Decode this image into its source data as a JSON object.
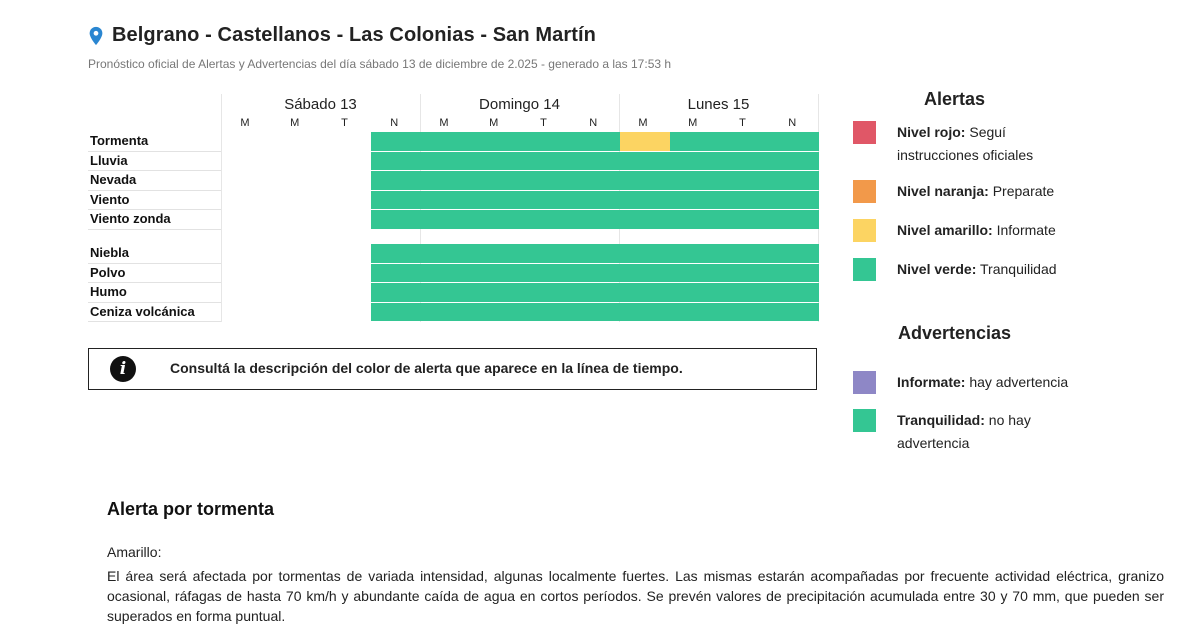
{
  "header": {
    "location": "Belgrano - Castellanos - Las Colonias - San Martín",
    "subtitle": "Pronóstico oficial de Alertas y Advertencias del día sábado 13 de diciembre de 2.025 - generado a las 17:53 h"
  },
  "timeline": {
    "days": [
      "Sábado 13",
      "Domingo 14",
      "Lunes 15"
    ],
    "slots": [
      "M",
      "M",
      "T",
      "N",
      "M",
      "M",
      "T",
      "N",
      "M",
      "M",
      "T",
      "N"
    ],
    "rows": [
      "Tormenta",
      "Lluvia",
      "Nevada",
      "Viento",
      "Viento zonda",
      "Niebla",
      "Polvo",
      "Humo",
      "Ceniza volcánica"
    ],
    "levels": [
      [
        "none",
        "none",
        "none",
        "verde",
        "verde",
        "verde",
        "verde",
        "verde",
        "amarillo",
        "verde",
        "verde",
        "verde"
      ],
      [
        "none",
        "none",
        "none",
        "verde",
        "verde",
        "verde",
        "verde",
        "verde",
        "verde",
        "verde",
        "verde",
        "verde"
      ],
      [
        "none",
        "none",
        "none",
        "verde",
        "verde",
        "verde",
        "verde",
        "verde",
        "verde",
        "verde",
        "verde",
        "verde"
      ],
      [
        "none",
        "none",
        "none",
        "verde",
        "verde",
        "verde",
        "verde",
        "verde",
        "verde",
        "verde",
        "verde",
        "verde"
      ],
      [
        "none",
        "none",
        "none",
        "verde",
        "verde",
        "verde",
        "verde",
        "verde",
        "verde",
        "verde",
        "verde",
        "verde"
      ],
      [
        "none",
        "none",
        "none",
        "verde",
        "verde",
        "verde",
        "verde",
        "verde",
        "verde",
        "verde",
        "verde",
        "verde"
      ],
      [
        "none",
        "none",
        "none",
        "verde",
        "verde",
        "verde",
        "verde",
        "verde",
        "verde",
        "verde",
        "verde",
        "verde"
      ],
      [
        "none",
        "none",
        "none",
        "verde",
        "verde",
        "verde",
        "verde",
        "verde",
        "verde",
        "verde",
        "verde",
        "verde"
      ],
      [
        "none",
        "none",
        "none",
        "verde",
        "verde",
        "verde",
        "verde",
        "verde",
        "verde",
        "verde",
        "verde",
        "verde"
      ]
    ]
  },
  "colors": {
    "rojo": "#e05767",
    "naranja": "#f2994a",
    "amarillo": "#fcd462",
    "verde": "#34c693",
    "informate": "#8e87c6"
  },
  "info_box": {
    "icon": "info-icon",
    "icon_glyph": "i",
    "text": "Consultá la descripción del color de alerta que aparece en la línea de tiempo."
  },
  "legend": {
    "alertas_title": "Alertas",
    "alertas": [
      {
        "key": "rojo",
        "label": "Nivel rojo:",
        "desc": "Seguí instrucciones oficiales"
      },
      {
        "key": "naranja",
        "label": "Nivel naranja:",
        "desc": "Preparate"
      },
      {
        "key": "amarillo",
        "label": "Nivel amarillo:",
        "desc": "Informate"
      },
      {
        "key": "verde",
        "label": "Nivel verde:",
        "desc": "Tranquilidad"
      }
    ],
    "advertencias_title": "Advertencias",
    "advertencias": [
      {
        "key": "informate",
        "label": "Informate:",
        "desc": "hay advertencia"
      },
      {
        "key": "verde",
        "label": "Tranquilidad:",
        "desc": "no hay advertencia"
      }
    ]
  },
  "alert_section": {
    "title": "Alerta por tormenta",
    "level": "Amarillo:",
    "description": "El área será afectada por tormentas de variada intensidad, algunas localmente fuertes. Las mismas estarán acompañadas por frecuente actividad eléctrica, granizo ocasional, ráfagas de hasta 70 km/h y abundante caída de agua en cortos períodos. Se prevén valores de precipitación acumulada entre 30 y 70 mm, que pueden ser superados en forma puntual."
  }
}
